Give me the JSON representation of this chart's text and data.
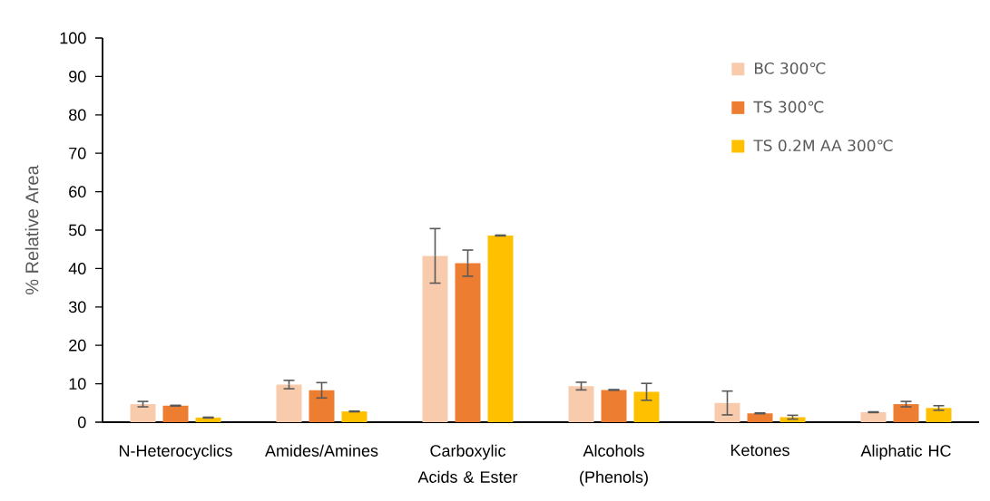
{
  "chart_data": {
    "type": "bar",
    "ylabel": "% Relative Area",
    "categories": [
      "N-Heterocyclics",
      "Amides/Amines",
      "Carboxylic Acids & Ester",
      "Alcohols (Phenols)",
      "Ketones",
      "Aliphatic HC"
    ],
    "series": [
      {
        "name": "BC 300℃",
        "color": "#f8cbad",
        "values": [
          4.7,
          9.8,
          43.3,
          9.4,
          5.0,
          2.6
        ],
        "errors": [
          0.7,
          1.1,
          7.1,
          1.0,
          3.1,
          0.1
        ]
      },
      {
        "name": "TS 300℃",
        "color": "#ed7d31",
        "values": [
          4.3,
          8.3,
          41.4,
          8.4,
          2.3,
          4.7
        ],
        "errors": [
          0.1,
          2.0,
          3.4,
          0.1,
          0.1,
          0.7
        ]
      },
      {
        "name": "TS 0.2M AA 300℃",
        "color": "#ffc000",
        "values": [
          1.2,
          2.8,
          48.6,
          7.9,
          1.3,
          3.7
        ],
        "errors": [
          0.1,
          0.1,
          0.1,
          2.2,
          0.5,
          0.6
        ]
      }
    ],
    "ylim": [
      0,
      100
    ],
    "yticks": [
      0,
      10,
      20,
      30,
      40,
      50,
      60,
      70,
      80,
      90,
      100
    ],
    "legend": "top right"
  }
}
